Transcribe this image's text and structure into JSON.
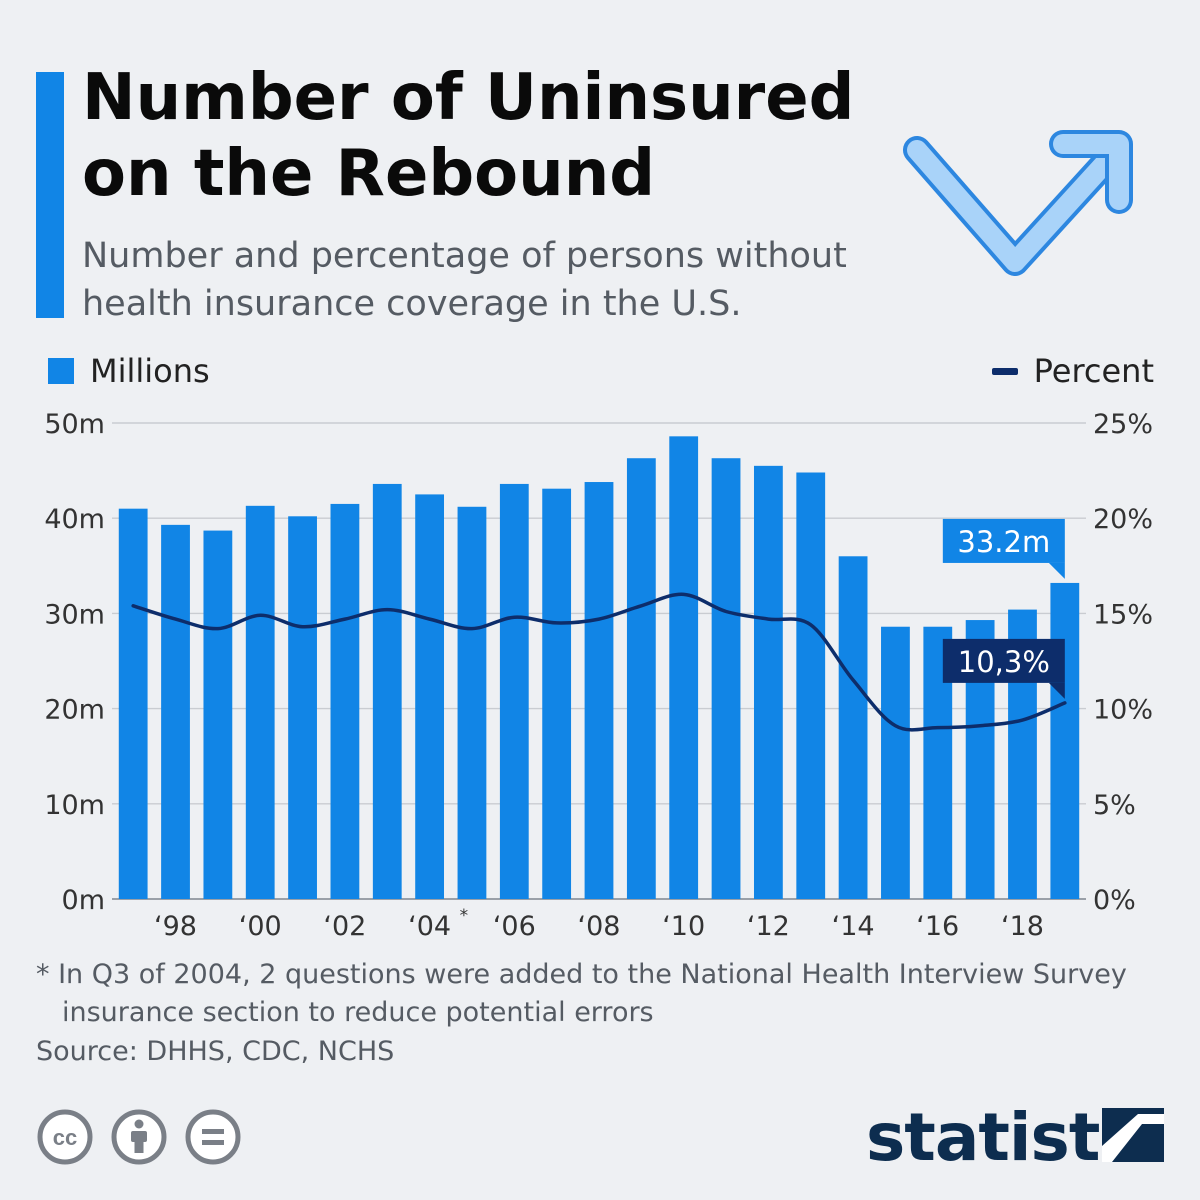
{
  "header": {
    "title": "Number of Uninsured on the Rebound",
    "subtitle": "Number and percentage of persons without health insurance coverage in the U.S.",
    "title_lines": [
      "Number of Uninsured",
      "on the Rebound"
    ],
    "subtitle_lines": [
      "Number and percentage of persons without",
      "health insurance coverage in the U.S."
    ]
  },
  "icons": {
    "trend": "v-up-arrow-icon",
    "footer": [
      "cc-icon",
      "attribution-icon",
      "no-derivatives-icon"
    ]
  },
  "legend": {
    "left": "Millions",
    "right": "Percent",
    "placement_left": "top-left",
    "placement_right": "top-right"
  },
  "colors": {
    "bars": "#1185e6",
    "line": "#0d2d6b",
    "callout_bar": "#1185e6",
    "callout_line": "#0d2d6b",
    "grid": "#c9ccd1"
  },
  "chart_data": {
    "type": "bar",
    "title": "Number of Uninsured on the Rebound",
    "x": [
      1997,
      1998,
      1999,
      2000,
      2001,
      2002,
      2003,
      2004,
      2005,
      2006,
      2007,
      2008,
      2009,
      2010,
      2011,
      2012,
      2013,
      2014,
      2015,
      2016,
      2017,
      2018,
      2019
    ],
    "x_tick_labels": [
      "‘98",
      "‘00",
      "‘02",
      "‘04",
      "‘06",
      "‘08",
      "‘10",
      "‘12",
      "‘14",
      "‘16",
      "‘18"
    ],
    "x_tick_years": [
      1998,
      2000,
      2002,
      2004,
      2006,
      2008,
      2010,
      2012,
      2014,
      2016,
      2018
    ],
    "x_tick_marker": "*",
    "x_tick_marker_year": 2004,
    "series": [
      {
        "name": "Millions",
        "type": "bar",
        "axis": "left",
        "values": [
          41.0,
          39.3,
          38.7,
          41.3,
          40.2,
          41.5,
          43.6,
          42.5,
          41.2,
          43.6,
          43.1,
          43.8,
          46.3,
          48.6,
          46.3,
          45.5,
          44.8,
          36.0,
          28.6,
          28.6,
          29.3,
          30.4,
          33.2
        ]
      },
      {
        "name": "Percent",
        "type": "line",
        "axis": "right",
        "values": [
          15.4,
          14.7,
          14.2,
          14.9,
          14.3,
          14.7,
          15.2,
          14.7,
          14.2,
          14.8,
          14.5,
          14.7,
          15.4,
          16.0,
          15.1,
          14.7,
          14.4,
          11.5,
          9.1,
          9.0,
          9.1,
          9.4,
          10.3
        ]
      }
    ],
    "left_axis": {
      "ylim": [
        0,
        50
      ],
      "ticks": [
        "0m",
        "10m",
        "20m",
        "30m",
        "40m",
        "50m"
      ]
    },
    "right_axis": {
      "ylim": [
        0,
        25
      ],
      "ticks": [
        "0%",
        "5%",
        "10%",
        "15%",
        "20%",
        "25%"
      ]
    },
    "grid": true,
    "annotations": [
      {
        "text": "33.2m",
        "series": "Millions",
        "year": 2019
      },
      {
        "text": "10,3%",
        "series": "Percent",
        "year": 2019
      }
    ]
  },
  "footer": {
    "footnote_line1": "* In Q3 of 2004, 2 questions were added to the National Health Interview Survey",
    "footnote_line2": "insurance section to reduce potential errors",
    "source": "Source: DHHS, CDC, NCHS",
    "brand": "statista"
  }
}
